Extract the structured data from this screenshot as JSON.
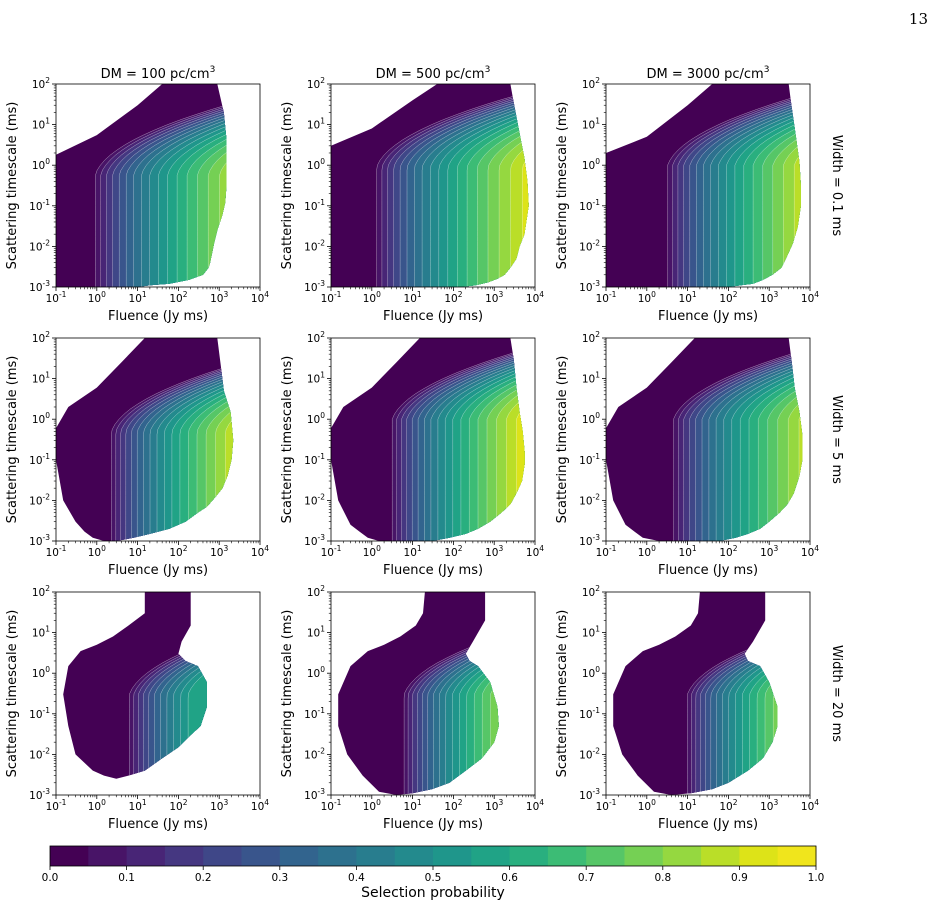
{
  "page": {
    "number": "13"
  },
  "figure": {
    "columns": [
      {
        "title_main": "DM = 100 pc/cm",
        "title_sup": "3"
      },
      {
        "title_main": "DM = 500 pc/cm",
        "title_sup": "3"
      },
      {
        "title_main": "DM = 3000 pc/cm",
        "title_sup": "3"
      }
    ],
    "rows": [
      {
        "label": "Width = 0.1 ms"
      },
      {
        "label": "Width = 5 ms"
      },
      {
        "label": "Width = 20 ms"
      }
    ],
    "xlabel": "Fluence (Jy ms)",
    "ylabel": "Scattering timescale (ms)",
    "colorbar": {
      "label": "Selection probability",
      "ticks": [
        "0.0",
        "0.1",
        "0.2",
        "0.3",
        "0.4",
        "0.5",
        "0.6",
        "0.7",
        "0.8",
        "0.9",
        "1.0"
      ],
      "levels": 20,
      "colors": [
        "#440154",
        "#481467",
        "#482576",
        "#453781",
        "#3f4788",
        "#39558c",
        "#32648e",
        "#2d718e",
        "#287d8e",
        "#238a8d",
        "#1f968b",
        "#20a386",
        "#29af7f",
        "#3cbc75",
        "#56c667",
        "#75d054",
        "#95d840",
        "#bade28",
        "#dde318",
        "#f0e51c"
      ]
    }
  },
  "chart_data": [
    {
      "type": "heatmap",
      "panel": "DM 100, Width 0.1 ms",
      "x_scale": "log",
      "y_scale": "log",
      "xlim": [
        0.1,
        10000
      ],
      "ylim": [
        0.001,
        100
      ],
      "x_ticks": [
        "10^-1",
        "10^0",
        "10^1",
        "10^2",
        "10^3",
        "10^4"
      ],
      "y_ticks": [
        "10^-3",
        "10^-2",
        "10^-1",
        "10^0",
        "10^1",
        "10^2"
      ],
      "region_boundary": {
        "fluence": [
          0.1,
          0.1,
          1,
          10,
          40,
          90,
          160,
          280,
          500,
          900,
          1300,
          1500,
          1500,
          1500,
          1400,
          1200,
          900,
          750,
          650,
          600,
          550,
          400,
          180,
          60,
          20,
          10,
          5,
          0.1
        ],
        "scattering": [
          0.001,
          1.8,
          5.5,
          30,
          100,
          100,
          100,
          100,
          100,
          100,
          20,
          4.5,
          1,
          0.3,
          0.12,
          0.06,
          0.025,
          0.012,
          0.006,
          0.004,
          0.003,
          0.002,
          0.0015,
          0.0012,
          0.0011,
          0.001,
          0.001,
          0.001
        ]
      },
      "contour_params": {
        "fluence_1pct": 0.7,
        "fluence_50pct": 250,
        "scattering_knee": 0.6
      },
      "selection_probability_range": [
        0.0,
        1.0
      ]
    },
    {
      "type": "heatmap",
      "panel": "DM 500, Width 0.1 ms",
      "x_scale": "log",
      "y_scale": "log",
      "xlim": [
        0.1,
        10000
      ],
      "ylim": [
        0.001,
        100
      ],
      "x_ticks": [
        "10^-1",
        "10^0",
        "10^1",
        "10^2",
        "10^3",
        "10^4"
      ],
      "y_ticks": [
        "10^-3",
        "10^-2",
        "10^-1",
        "10^0",
        "10^1",
        "10^2"
      ],
      "region_boundary": {
        "fluence": [
          0.1,
          0.1,
          1,
          10,
          40,
          100,
          250,
          600,
          1500,
          2500,
          3000,
          4200,
          5500,
          6500,
          7000,
          5500,
          4200,
          3500,
          2500,
          1800,
          1200,
          700,
          350,
          150,
          60,
          20,
          0.1
        ],
        "scattering": [
          0.001,
          3,
          8,
          40,
          100,
          100,
          100,
          100,
          100,
          100,
          35,
          6,
          1.5,
          0.4,
          0.1,
          0.02,
          0.01,
          0.005,
          0.003,
          0.002,
          0.0016,
          0.0013,
          0.0011,
          0.001,
          0.001,
          0.001,
          0.001
        ]
      },
      "contour_params": {
        "fluence_1pct": 1.0,
        "fluence_50pct": 330,
        "scattering_knee": 0.9
      },
      "selection_probability_range": [
        0.0,
        1.0
      ]
    },
    {
      "type": "heatmap",
      "panel": "DM 3000, Width 0.1 ms",
      "x_scale": "log",
      "y_scale": "log",
      "xlim": [
        0.1,
        10000
      ],
      "ylim": [
        0.001,
        100
      ],
      "x_ticks": [
        "10^-1",
        "10^0",
        "10^1",
        "10^2",
        "10^3",
        "10^4"
      ],
      "y_ticks": [
        "10^-3",
        "10^-2",
        "10^-1",
        "10^0",
        "10^1",
        "10^2"
      ],
      "region_boundary": {
        "fluence": [
          0.1,
          0.1,
          1,
          10,
          40,
          100,
          300,
          800,
          1800,
          3000,
          3500,
          4500,
          5500,
          6000,
          6000,
          5000,
          3800,
          2800,
          2000,
          1200,
          700,
          400,
          200,
          100,
          60,
          40,
          0.1
        ],
        "scattering": [
          0.001,
          2,
          5,
          30,
          100,
          100,
          100,
          100,
          100,
          100,
          30,
          5,
          1.2,
          0.3,
          0.1,
          0.03,
          0.012,
          0.006,
          0.003,
          0.002,
          0.0015,
          0.0012,
          0.0011,
          0.001,
          0.001,
          0.001,
          0.001
        ]
      },
      "contour_params": {
        "fluence_1pct": 2.5,
        "fluence_50pct": 600,
        "scattering_knee": 1.0
      },
      "selection_probability_range": [
        0.0,
        1.0
      ]
    },
    {
      "type": "heatmap",
      "panel": "DM 100, Width 5 ms",
      "x_scale": "log",
      "y_scale": "log",
      "xlim": [
        0.1,
        10000
      ],
      "ylim": [
        0.001,
        100
      ],
      "x_ticks": [
        "10^-1",
        "10^0",
        "10^1",
        "10^2",
        "10^3",
        "10^4"
      ],
      "y_ticks": [
        "10^-3",
        "10^-2",
        "10^-1",
        "10^0",
        "10^1",
        "10^2"
      ],
      "region_boundary": {
        "fluence": [
          0.3,
          0.15,
          0.1,
          0.1,
          0.2,
          1,
          4,
          15,
          50,
          150,
          400,
          900,
          1100,
          1300,
          1900,
          2200,
          2000,
          1600,
          1200,
          800,
          500,
          300,
          150,
          60,
          20,
          8,
          3,
          1.5,
          0.8,
          0.5,
          0.3
        ],
        "scattering": [
          0.003,
          0.01,
          0.1,
          0.6,
          2,
          6,
          25,
          100,
          100,
          100,
          100,
          100,
          20,
          5,
          1.5,
          0.3,
          0.1,
          0.04,
          0.02,
          0.012,
          0.007,
          0.005,
          0.003,
          0.002,
          0.0015,
          0.0012,
          0.001,
          0.001,
          0.0012,
          0.0017,
          0.003
        ]
      },
      "contour_params": {
        "fluence_1pct": 1.8,
        "fluence_50pct": 250,
        "scattering_knee": 0.5
      },
      "selection_probability_range": [
        0.0,
        1.0
      ]
    },
    {
      "type": "heatmap",
      "panel": "DM 500, Width 5 ms",
      "x_scale": "log",
      "y_scale": "log",
      "xlim": [
        0.1,
        10000
      ],
      "ylim": [
        0.001,
        100
      ],
      "x_ticks": [
        "10^-1",
        "10^0",
        "10^1",
        "10^2",
        "10^3",
        "10^4"
      ],
      "y_ticks": [
        "10^-3",
        "10^-2",
        "10^-1",
        "10^0",
        "10^1",
        "10^2"
      ],
      "region_boundary": {
        "fluence": [
          0.3,
          0.15,
          0.1,
          0.1,
          0.2,
          1,
          4,
          15,
          60,
          200,
          600,
          1500,
          2500,
          3000,
          3500,
          4200,
          5000,
          5600,
          5600,
          4800,
          3500,
          2500,
          1500,
          800,
          400,
          200,
          80,
          30,
          10,
          4,
          1.5,
          0.8,
          0.5,
          0.3
        ],
        "scattering": [
          0.0025,
          0.01,
          0.1,
          0.6,
          2,
          6,
          25,
          100,
          100,
          100,
          100,
          100,
          100,
          30,
          6,
          1.5,
          0.5,
          0.15,
          0.08,
          0.03,
          0.015,
          0.008,
          0.005,
          0.003,
          0.002,
          0.0015,
          0.0012,
          0.001,
          0.001,
          0.001,
          0.001,
          0.0012,
          0.0017,
          0.0025
        ]
      },
      "contour_params": {
        "fluence_1pct": 2.5,
        "fluence_50pct": 350,
        "scattering_knee": 1.0
      },
      "selection_probability_range": [
        0.0,
        1.0
      ]
    },
    {
      "type": "heatmap",
      "panel": "DM 3000, Width 5 ms",
      "x_scale": "log",
      "y_scale": "log",
      "xlim": [
        0.1,
        10000
      ],
      "ylim": [
        0.001,
        100
      ],
      "x_ticks": [
        "10^-1",
        "10^0",
        "10^1",
        "10^2",
        "10^3",
        "10^4"
      ],
      "y_ticks": [
        "10^-3",
        "10^-2",
        "10^-1",
        "10^0",
        "10^1",
        "10^2"
      ],
      "region_boundary": {
        "fluence": [
          0.3,
          0.15,
          0.1,
          0.1,
          0.2,
          1,
          4,
          15,
          60,
          200,
          600,
          1500,
          3000,
          3500,
          4200,
          5500,
          6500,
          6500,
          5500,
          4000,
          2800,
          1800,
          1000,
          600,
          300,
          150,
          60,
          20,
          6,
          2,
          0.8,
          0.5,
          0.3
        ],
        "scattering": [
          0.0025,
          0.01,
          0.1,
          0.6,
          2,
          6,
          25,
          100,
          100,
          100,
          100,
          100,
          100,
          30,
          6,
          1.5,
          0.4,
          0.1,
          0.04,
          0.015,
          0.008,
          0.005,
          0.003,
          0.002,
          0.0015,
          0.0012,
          0.001,
          0.001,
          0.001,
          0.001,
          0.0012,
          0.0017,
          0.0025
        ]
      },
      "contour_params": {
        "fluence_1pct": 3.5,
        "fluence_50pct": 800,
        "scattering_knee": 1.0
      },
      "selection_probability_range": [
        0.0,
        1.0
      ]
    },
    {
      "type": "heatmap",
      "panel": "DM 100, Width 20 ms",
      "x_scale": "log",
      "y_scale": "log",
      "xlim": [
        0.1,
        10000
      ],
      "ylim": [
        0.001,
        100
      ],
      "x_ticks": [
        "10^-1",
        "10^0",
        "10^1",
        "10^2",
        "10^3",
        "10^4"
      ],
      "y_ticks": [
        "10^-3",
        "10^-2",
        "10^-1",
        "10^0",
        "10^1",
        "10^2"
      ],
      "region_boundary": {
        "fluence": [
          0.8,
          0.3,
          0.2,
          0.15,
          0.2,
          0.4,
          1,
          2.5,
          6,
          15,
          15,
          20,
          60,
          200,
          200,
          120,
          100,
          150,
          300,
          500,
          500,
          350,
          200,
          100,
          40,
          15,
          6,
          3,
          1.5,
          0.8
        ],
        "scattering": [
          0.004,
          0.01,
          0.05,
          0.3,
          1.5,
          3.5,
          5,
          8,
          15,
          30,
          100,
          100,
          100,
          100,
          15,
          6,
          3,
          2,
          1.5,
          0.6,
          0.15,
          0.05,
          0.03,
          0.015,
          0.008,
          0.004,
          0.003,
          0.0025,
          0.003,
          0.004
        ]
      },
      "contour_params": {
        "fluence_1pct": 5,
        "fluence_50pct": 600,
        "scattering_knee": 0.3
      },
      "selection_probability_range": [
        0.0,
        0.55
      ]
    },
    {
      "type": "heatmap",
      "panel": "DM 500, Width 20 ms",
      "x_scale": "log",
      "y_scale": "log",
      "xlim": [
        0.1,
        10000
      ],
      "ylim": [
        0.001,
        100
      ],
      "x_ticks": [
        "10^-1",
        "10^0",
        "10^1",
        "10^2",
        "10^3",
        "10^4"
      ],
      "y_ticks": [
        "10^-3",
        "10^-2",
        "10^-1",
        "10^0",
        "10^1",
        "10^2"
      ],
      "region_boundary": {
        "fluence": [
          0.6,
          0.25,
          0.15,
          0.15,
          0.3,
          0.8,
          2,
          5,
          12,
          18,
          20,
          25,
          60,
          400,
          600,
          600,
          300,
          200,
          250,
          400,
          800,
          1200,
          1300,
          1000,
          500,
          200,
          80,
          30,
          10,
          4,
          1.5,
          0.6
        ],
        "scattering": [
          0.003,
          0.01,
          0.05,
          0.3,
          1.5,
          3.5,
          5,
          8,
          15,
          30,
          100,
          100,
          100,
          100,
          100,
          20,
          6,
          3,
          2,
          1.5,
          0.6,
          0.15,
          0.05,
          0.02,
          0.008,
          0.004,
          0.002,
          0.0014,
          0.0011,
          0.001,
          0.0012,
          0.003
        ]
      },
      "contour_params": {
        "fluence_1pct": 5,
        "fluence_50pct": 450,
        "scattering_knee": 0.3
      },
      "selection_probability_range": [
        0.0,
        1.0
      ]
    },
    {
      "type": "heatmap",
      "panel": "DM 3000, Width 20 ms",
      "x_scale": "log",
      "y_scale": "log",
      "xlim": [
        0.1,
        10000
      ],
      "ylim": [
        0.001,
        100
      ],
      "x_ticks": [
        "10^-1",
        "10^0",
        "10^1",
        "10^2",
        "10^3",
        "10^4"
      ],
      "y_ticks": [
        "10^-3",
        "10^-2",
        "10^-1",
        "10^0",
        "10^1",
        "10^2"
      ],
      "region_boundary": {
        "fluence": [
          0.6,
          0.25,
          0.15,
          0.15,
          0.3,
          0.8,
          2,
          5,
          12,
          18,
          20,
          25,
          80,
          600,
          800,
          800,
          400,
          250,
          300,
          600,
          1000,
          1600,
          1600,
          1200,
          700,
          300,
          100,
          40,
          12,
          4,
          1.5,
          0.6
        ],
        "scattering": [
          0.003,
          0.01,
          0.05,
          0.3,
          1.5,
          3.5,
          5,
          8,
          15,
          30,
          100,
          100,
          100,
          100,
          100,
          20,
          6,
          3,
          2,
          1.5,
          0.6,
          0.15,
          0.05,
          0.02,
          0.008,
          0.004,
          0.002,
          0.0014,
          0.0011,
          0.001,
          0.0012,
          0.003
        ]
      },
      "contour_params": {
        "fluence_1pct": 8,
        "fluence_50pct": 700,
        "scattering_knee": 0.3
      },
      "selection_probability_range": [
        0.0,
        1.0
      ]
    }
  ]
}
